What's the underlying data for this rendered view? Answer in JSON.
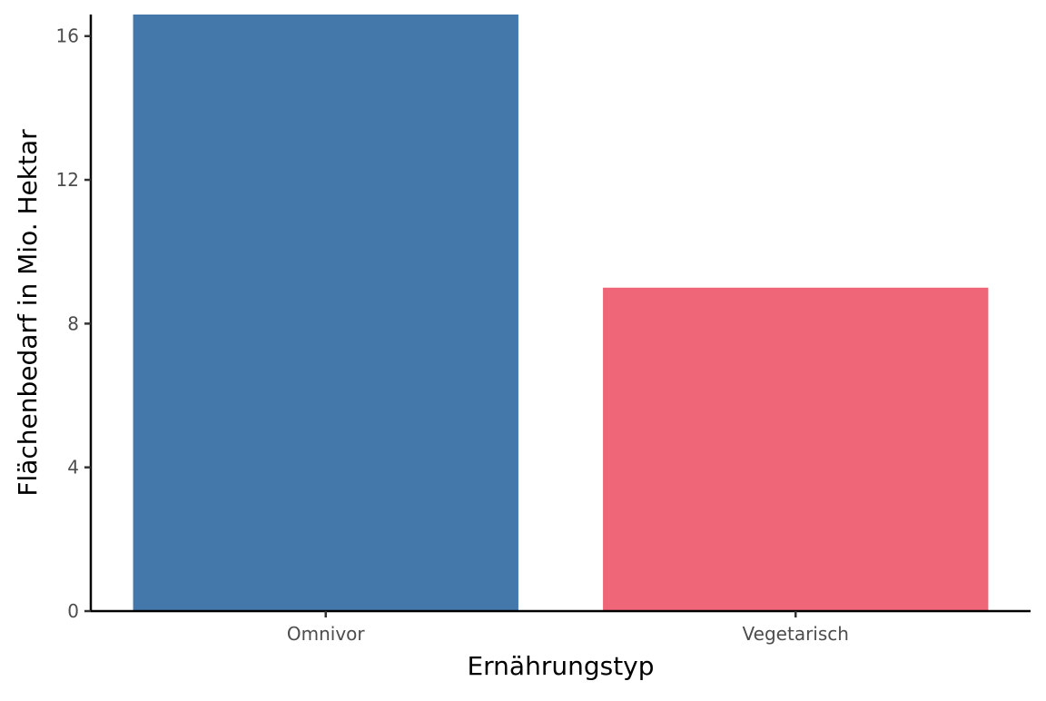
{
  "chart_data": {
    "type": "bar",
    "categories": [
      "Omnivor",
      "Vegetarisch"
    ],
    "values": [
      16.6,
      9.0
    ],
    "colors": [
      "#4477AA",
      "#EE6677"
    ],
    "xlabel": "Ernährungstyp",
    "ylabel": "Flächenbedarf in Mio. Hektar",
    "yticks": [
      0,
      4,
      8,
      12,
      16
    ],
    "ylim": [
      0,
      16.6
    ],
    "grid": false,
    "legend": "none"
  }
}
